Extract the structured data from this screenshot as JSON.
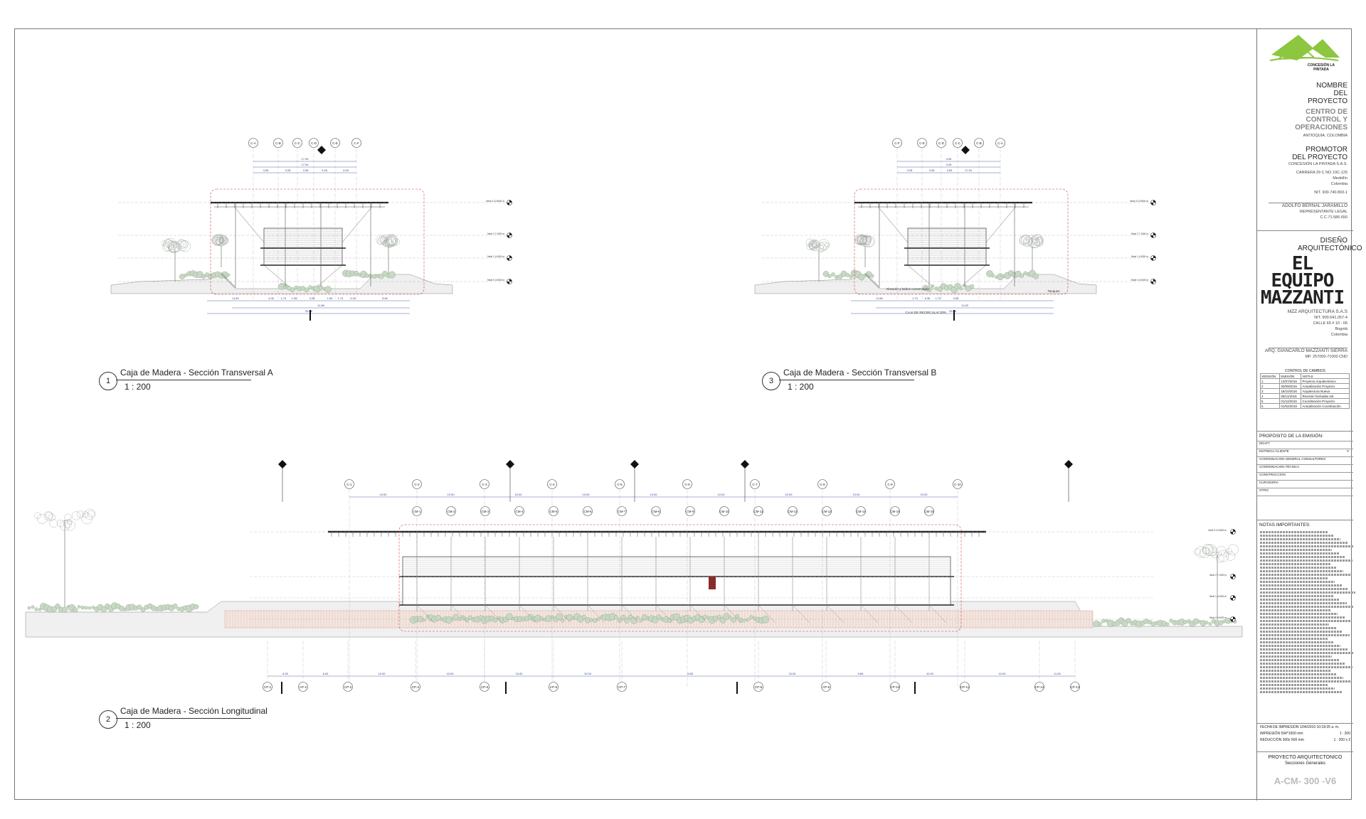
{
  "drawings": [
    {
      "number": "1",
      "title": "Caja de Madera - Sección Transversal A",
      "scale": "1 : 200"
    },
    {
      "number": "3",
      "title": "Caja de Madera - Sección Transversal B",
      "scale": "1 : 200"
    },
    {
      "number": "2",
      "title": "Caja de Madera - Sección Longitudinal",
      "scale": "1 : 200"
    }
  ],
  "grids_a": [
    "C-A",
    "C-B",
    "C-C",
    "C-D",
    "C-E",
    "C-F"
  ],
  "grids_b": [
    "C-F",
    "C-E",
    "C-D",
    "C-C",
    "C-B",
    "C-A"
  ],
  "grids_long": [
    "C-1",
    "C-2",
    "C-3",
    "C-4",
    "C-5",
    "C-6",
    "C-7",
    "C-8",
    "C-9",
    "C-10"
  ],
  "cm_long": [
    "CM-1",
    "CM-2",
    "CM-3",
    "CM-4",
    "CM-5",
    "CM-6",
    "CM-7",
    "CM-8",
    "CM-9",
    "CM-10",
    "CM-11",
    "CM-12",
    "CM-13",
    "CM-14",
    "CM-15",
    "CM-16"
  ],
  "cp_long": [
    "CP-1",
    "CP-2",
    "CP-3",
    "CP-4",
    "CP-5",
    "CP-6",
    "CP-7",
    "CP-8",
    "CP-9",
    "CP-10",
    "CP-11",
    "CP-12",
    "CP-13"
  ],
  "dims_a": [
    "17.94",
    "17.94",
    "4.05",
    "3.28",
    "3.28",
    "3.28",
    "4.05"
  ],
  "dims_a_bottom": [
    "11.83",
    "4.05",
    "1.73",
    "1.55",
    "3.28",
    "1.55",
    "1.73",
    "4.05",
    "8.84",
    "11.86",
    "33.56"
  ],
  "dims_b": [
    "4.05",
    "3.28",
    "3.28",
    "3.28",
    "4.05",
    "17.94"
  ],
  "dims_b_bottom": [
    "11.86",
    "1.73",
    "6.36",
    "1.73",
    "9.84",
    "11.83",
    "33.56"
  ],
  "dims_long_top": [
    "10.00",
    "10.00",
    "10.00",
    "10.00",
    "10.00",
    "10.00",
    "10.00",
    "10.00",
    "10.00"
  ],
  "dims_long_bottom": [
    "5.25",
    "6.63",
    "10.00",
    "10.00",
    "10.00",
    "10.00",
    "9.85",
    "10.00",
    "9.85",
    "10.00",
    "10.00",
    "11.50",
    "5.25"
  ],
  "levels": [
    "Nivel 3\n12.5000 m",
    "Nivel 2\n7.1000 m",
    "Nivel 1\n4.0000 m",
    "Nivel 0\n0.0000 m"
  ],
  "labels_b": [
    "Almacén y baños conservados",
    "Tanques",
    "CAJA DE RECIRCULACIÓN"
  ],
  "title_block": {
    "project_label": "NOMBRE DEL PROYECTO",
    "project_name": "CENTRO DE CONTROL Y OPERACIONES",
    "project_location": "ANTIOQUIA, COLOMBIA",
    "promoter_label": "PROMOTOR DEL PROYECTO",
    "promoter_name": "CONCESIÓN LA PINTADA S.A.S.",
    "promoter_address": "CARRERA 29 C NO 10C-125",
    "promoter_city": "Medellín",
    "promoter_country": "Colombia",
    "promoter_nit": "NIT. 900.740.893-1",
    "legal_rep": "ADOLFO BERNAL JARAMILLO",
    "legal_rep_role": "REPRESENTANTE LEGAL",
    "legal_rep_cc": "C.C.71.586.650",
    "logo_text": "CONCESIÓN LA PINTADA",
    "design_label": "DISEÑO ARQUITECTÓNICO",
    "firm_logo_1": "EL EQUIPO",
    "firm_logo_2": "MAZZANTI",
    "firm_name": "MZZ ARQUITECTURA S.A.S",
    "firm_nit": "NIT. 900.641.057-4",
    "firm_address": "CALLE 69 # 10 - 06",
    "firm_city": "Bogotá",
    "firm_country": "Colombia",
    "architect": "ARQ. GIANCARLO MAZZANTI SIERRA",
    "architect_mp": "MP. 257000-71000 CND",
    "changes_label": "CONTROL DE CAMBIOS",
    "changes_headers": [
      "VERSIÓN",
      "EMISIÓN",
      "NOTAS"
    ],
    "changes_rows": [
      [
        "1",
        "13/07/2016",
        "Proyecto Arquitectónico"
      ],
      [
        "2",
        "30/09/2016",
        "Actualización Proyecto"
      ],
      [
        "3",
        "18/10/2016",
        "Arquitectura Nueva"
      ],
      [
        "4",
        "06/11/2016",
        "Revisión fachadas est"
      ],
      [
        "5",
        "01/12/2016",
        "Coordinación Proyecto"
      ],
      [
        "6",
        "01/02/2019",
        "Actualización Coordinación"
      ]
    ],
    "purpose_label": "PROPÓSITO DE LA EMISIÓN:",
    "purpose_rows": [
      {
        "label": "DRAFT",
        "mark": ""
      },
      {
        "label": "ENTREGA CLIENTE",
        "mark": "X"
      },
      {
        "label": "COORDINACION GENERAL CONSULTORES",
        "mark": ""
      },
      {
        "label": "COORDINACION TÉCNICA",
        "mark": ""
      },
      {
        "label": "CONSTRUCCION",
        "mark": ""
      },
      {
        "label": "CURADURIA",
        "mark": ""
      },
      {
        "label": "OTRO",
        "mark": ""
      }
    ],
    "notes_label": "NOTAS IMPORTANTES:",
    "print_date_label": "FECHA DE IMPRESION",
    "print_date": "1/04/2019 10:18:25 a. m.",
    "print_size_label": "IMPRESIÓN 594*1000 mm",
    "print_scale": "1 : 200",
    "reduction_label": "REDUCCIÓN 300x 500 mm",
    "reduction_scale": "1 : 200 x 2",
    "sheet_type": "PROYECTO ARQUITECTONICO",
    "sheet_name": "Secciones Generales",
    "sheet_code": "A-CM- 300 -V6"
  },
  "colors": {
    "accent_green": "#8dc63f",
    "dim_blue": "#2b3d8f",
    "red_dash": "#d23a3a"
  }
}
